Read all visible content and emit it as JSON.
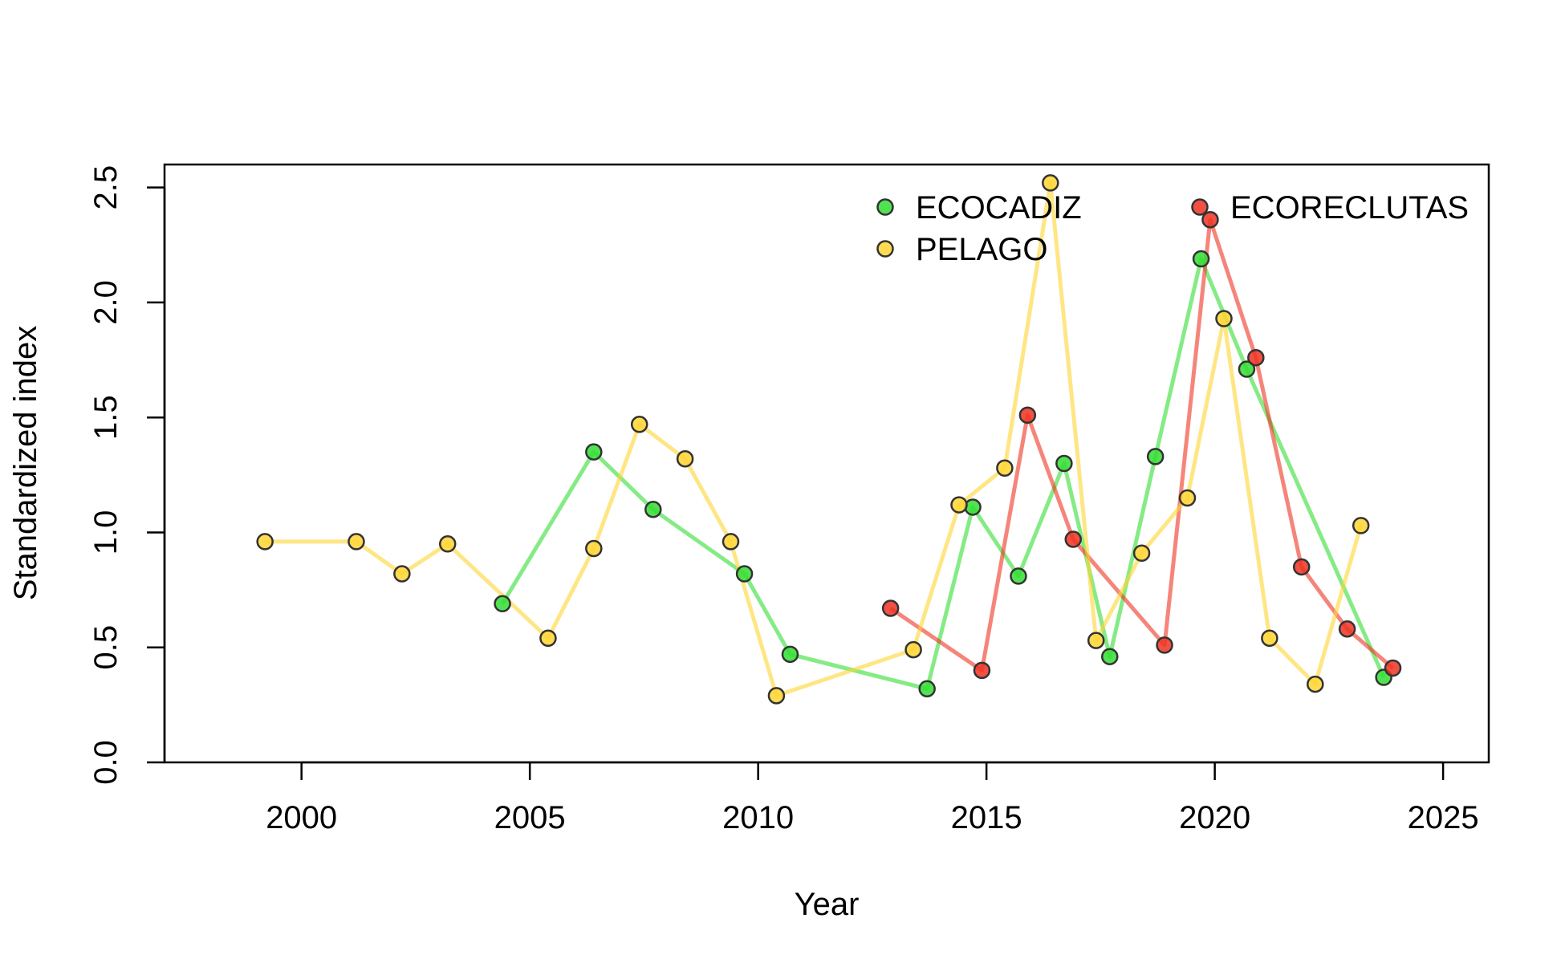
{
  "chart_data": {
    "type": "line",
    "xlabel": "Year",
    "ylabel": "Standardized index",
    "xlim": [
      1997,
      2026
    ],
    "ylim": [
      0,
      2.6
    ],
    "x_ticks": [
      2000,
      2005,
      2010,
      2015,
      2020,
      2025
    ],
    "y_ticks": [
      0.0,
      0.5,
      1.0,
      1.5,
      2.0,
      2.5
    ],
    "y_tick_labels": [
      "0.0",
      "0.5",
      "1.0",
      "1.5",
      "2.0",
      "2.5"
    ],
    "grid": false,
    "legend_position": "top-right",
    "series": [
      {
        "name": "ECOCADIZ",
        "color": "#33dd33",
        "x": [
          2004.4,
          2006.4,
          2007.7,
          2009.7,
          2010.7,
          2013.7,
          2014.7,
          2015.7,
          2016.7,
          2017.7,
          2018.7,
          2019.7,
          2020.7,
          2023.7
        ],
        "y": [
          0.69,
          1.35,
          1.1,
          0.82,
          0.47,
          0.32,
          1.11,
          0.81,
          1.3,
          0.46,
          1.33,
          2.19,
          1.71,
          0.37
        ]
      },
      {
        "name": "ECORECLUTAS",
        "color": "#ee3322",
        "x": [
          2012.9,
          2014.9,
          2015.9,
          2016.9,
          2018.9,
          2019.9,
          2020.9,
          2021.9,
          2022.9,
          2023.9
        ],
        "y": [
          0.67,
          0.4,
          1.51,
          0.97,
          0.51,
          2.36,
          1.76,
          0.85,
          0.58,
          0.41
        ]
      },
      {
        "name": "PELAGO",
        "color": "#ffd533",
        "x": [
          1999.2,
          2001.2,
          2002.2,
          2003.2,
          2005.4,
          2006.4,
          2007.4,
          2008.4,
          2009.4,
          2010.4,
          2013.4,
          2014.4,
          2015.4,
          2016.4,
          2017.4,
          2018.4,
          2019.4,
          2020.2,
          2021.2,
          2022.2,
          2023.2
        ],
        "y": [
          0.96,
          0.96,
          0.82,
          0.95,
          0.54,
          0.93,
          1.47,
          1.32,
          0.96,
          0.29,
          0.49,
          1.12,
          1.28,
          2.52,
          0.53,
          0.91,
          1.15,
          1.93,
          0.54,
          0.34,
          1.03
        ]
      }
    ]
  }
}
